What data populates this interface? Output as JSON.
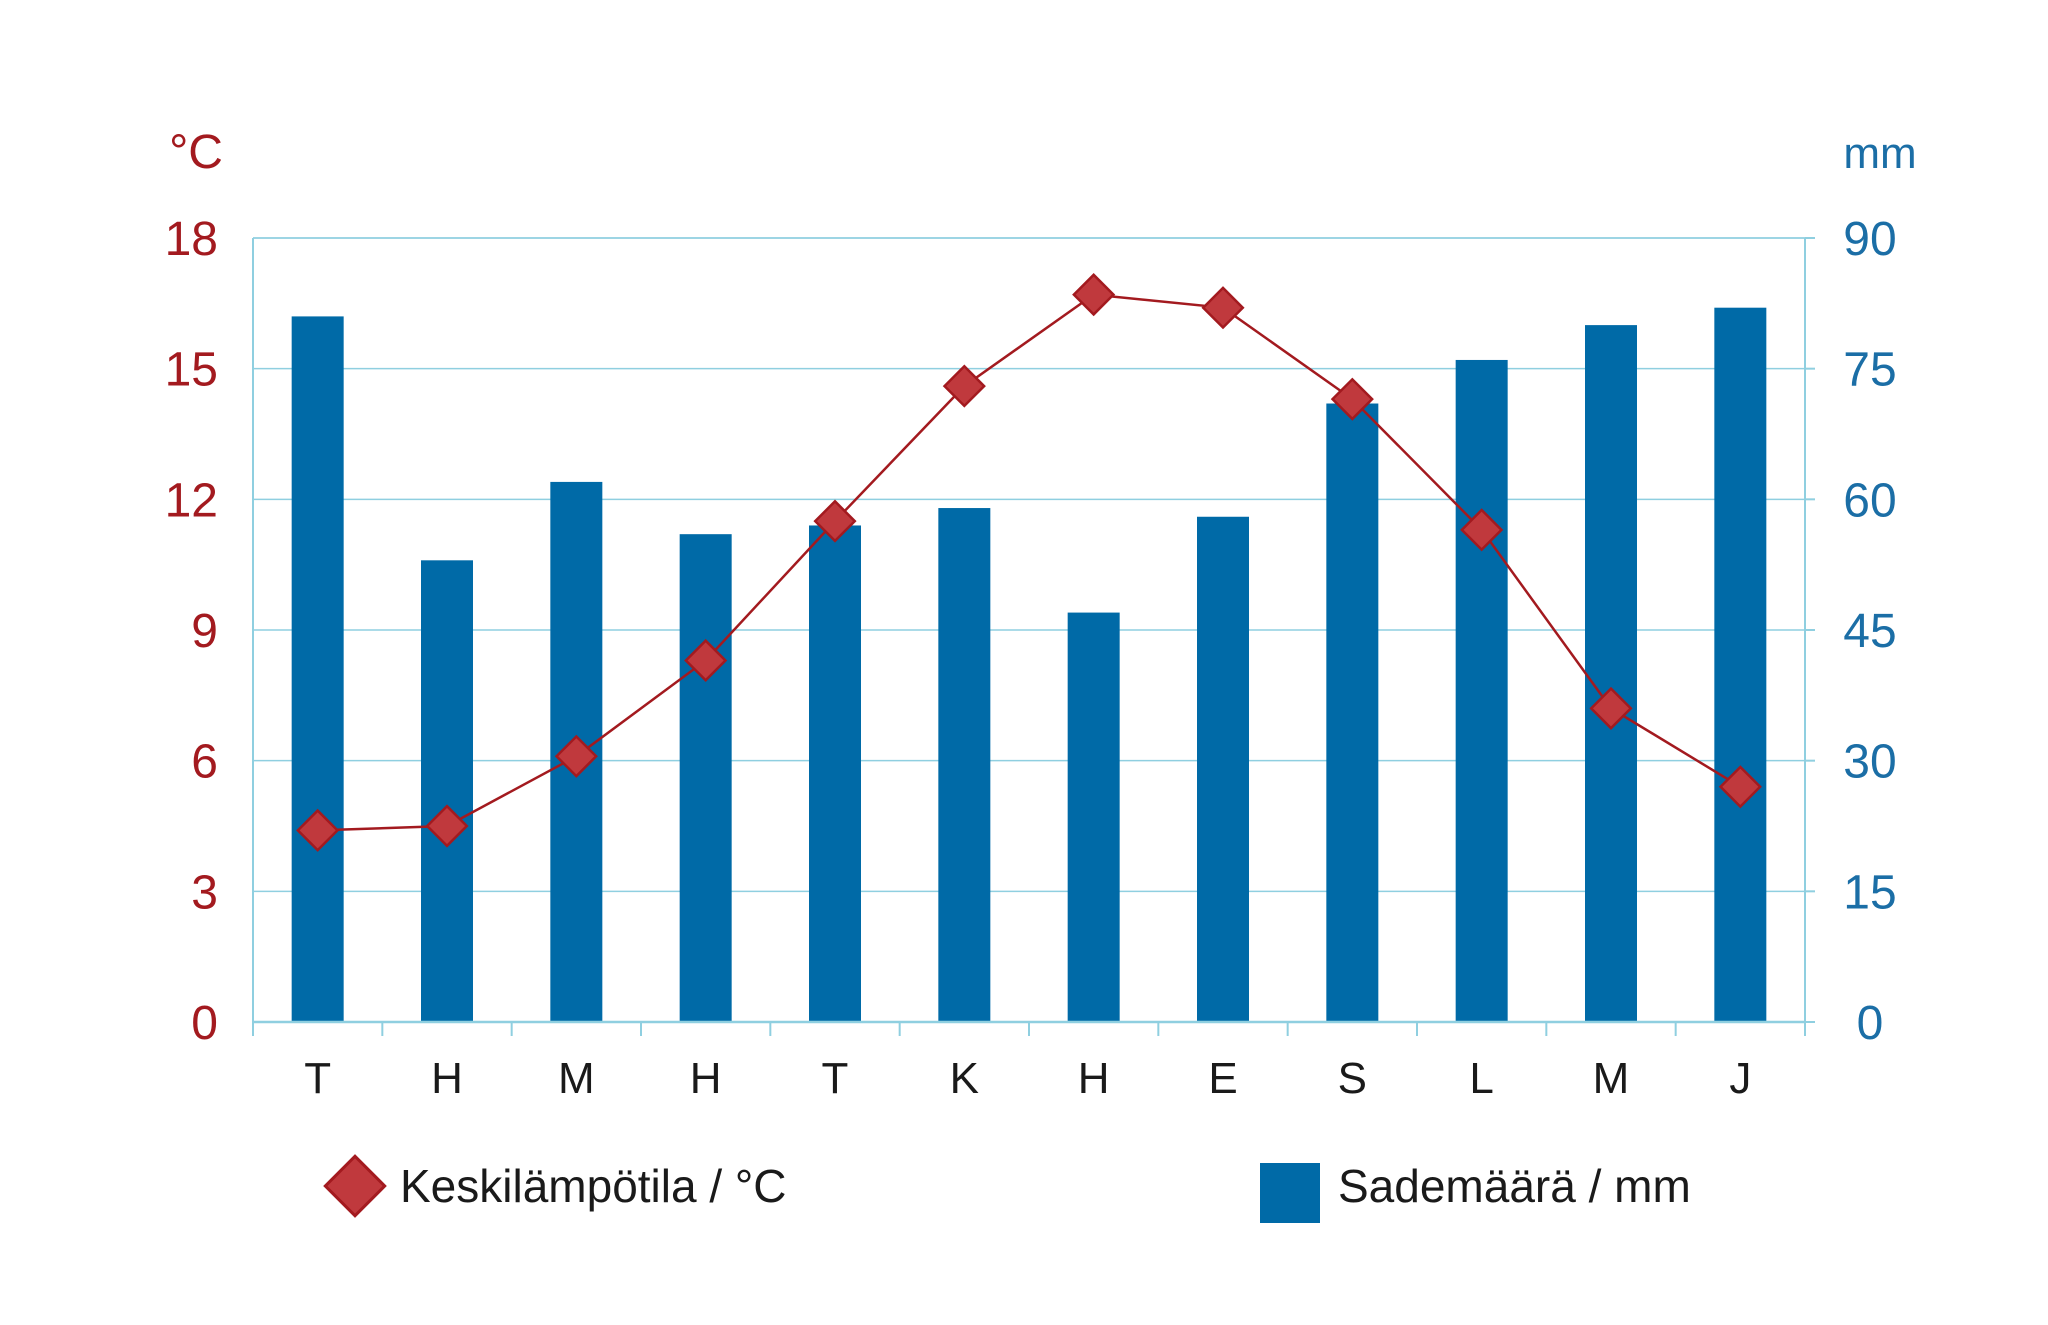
{
  "chart_data": {
    "type": "bar+line",
    "categories": [
      "T",
      "H",
      "M",
      "H",
      "T",
      "K",
      "H",
      "E",
      "S",
      "L",
      "M",
      "J"
    ],
    "left_axis": {
      "unit": "°C",
      "min": 0,
      "max": 18,
      "ticks": [
        0,
        3,
        6,
        9,
        12,
        15,
        18
      ]
    },
    "right_axis": {
      "unit": "mm",
      "min": 0,
      "max": 90,
      "ticks": [
        0,
        15,
        30,
        45,
        60,
        75,
        90
      ]
    },
    "series": [
      {
        "name": "Sademäärä / mm",
        "kind": "bar",
        "axis": "right",
        "values": [
          81,
          53,
          62,
          56,
          57,
          59,
          47,
          58,
          71,
          76,
          80,
          82
        ]
      },
      {
        "name": "Keskilämpötila / °C",
        "kind": "line",
        "axis": "left",
        "values": [
          4.4,
          4.5,
          6.1,
          8.3,
          11.5,
          14.6,
          16.7,
          16.4,
          14.3,
          11.3,
          7.2,
          5.4
        ]
      }
    ],
    "grid": true,
    "legend_position": "bottom"
  },
  "colors": {
    "bar": "#006aa7",
    "line": "#a31a1f",
    "marker_fill": "#c0393d",
    "left_axis_text": "#a31a1f",
    "right_axis_text": "#1b6ea6",
    "grid": "#8fcfe0"
  },
  "legend": {
    "temperature_label": "Keskilämpötila / °C",
    "precipitation_label": "Sademäärä / mm"
  }
}
